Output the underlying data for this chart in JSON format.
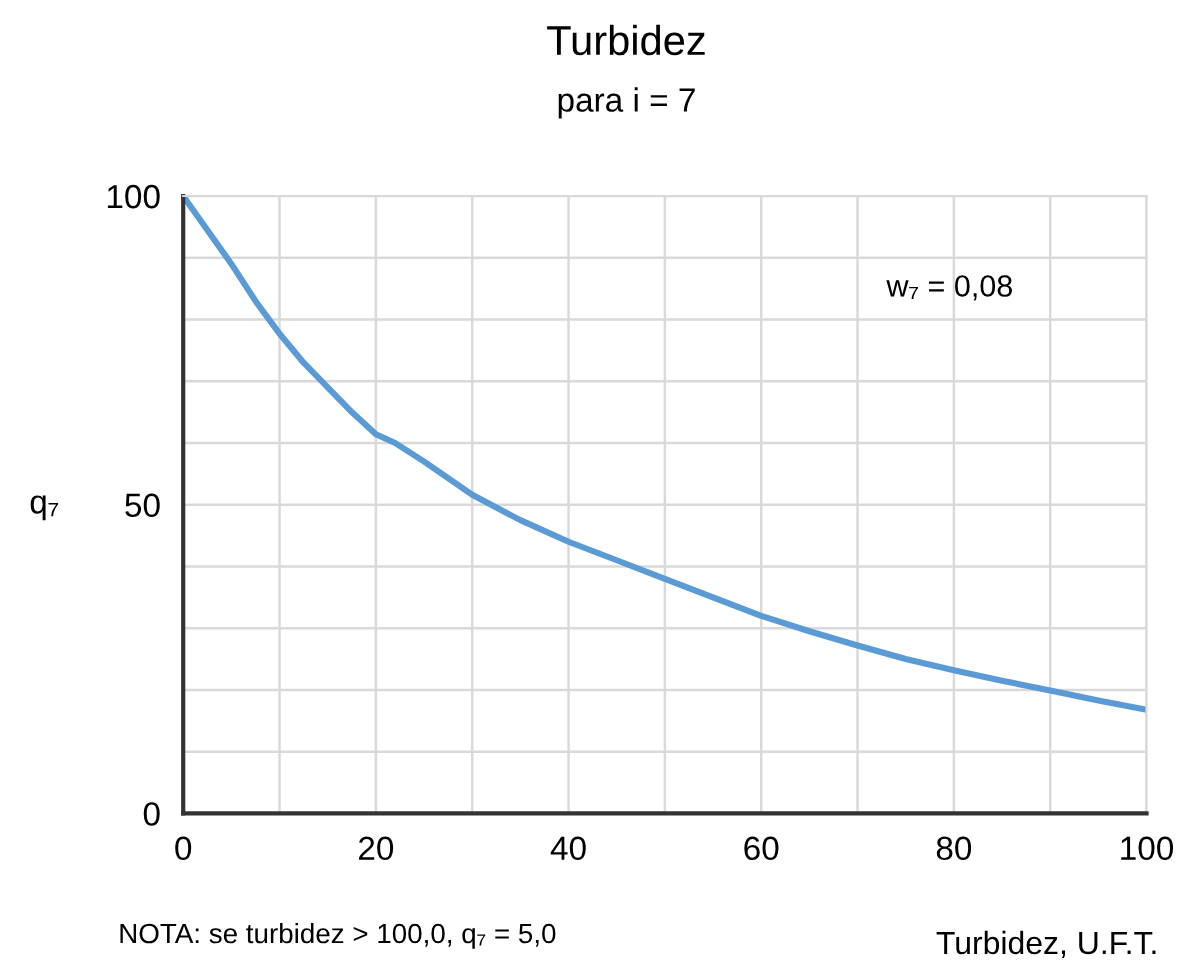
{
  "chart_data": {
    "type": "line",
    "title": "Turbidez",
    "subtitle": "para i = 7",
    "xlabel": "Turbidez, U.F.T.",
    "ylabel": "q₇",
    "x": [
      0,
      2.5,
      5,
      7.5,
      10,
      12.5,
      15,
      17.5,
      20,
      22,
      25,
      30,
      35,
      40,
      45,
      50,
      55,
      60,
      65,
      70,
      75,
      80,
      85,
      90,
      95,
      100
    ],
    "series": [
      {
        "color": "#5b9bd5",
        "values": [
          100,
          94.5,
          89,
          83,
          77.7,
          73,
          69,
          65,
          61.4,
          60,
          57,
          51.6,
          47.5,
          44,
          41,
          38,
          35,
          32,
          29.5,
          27.2,
          25,
          23.2,
          21.5,
          19.9,
          18.3,
          16.8
        ]
      }
    ],
    "xlim": [
      0,
      100
    ],
    "ylim": [
      0,
      100
    ],
    "xticks": [
      0,
      {
        "value": 10,
        "label": null
      },
      20,
      {
        "value": 30,
        "label": null
      },
      40,
      {
        "value": 50,
        "label": null
      },
      60,
      {
        "value": 70,
        "label": null
      },
      80,
      {
        "value": 90,
        "label": null
      },
      100
    ],
    "yticks": [
      0,
      {
        "value": 10,
        "label": null
      },
      {
        "value": 20,
        "label": null
      },
      {
        "value": 30,
        "label": null
      },
      {
        "value": 40,
        "label": null
      },
      50,
      {
        "value": 60,
        "label": null
      },
      {
        "value": 70,
        "label": null
      },
      {
        "value": 80,
        "label": null
      },
      {
        "value": 90,
        "label": null
      },
      100
    ],
    "grid": true,
    "marker": "none",
    "line_style": "solid",
    "annotations": [
      "w₇ = 0,08",
      "NOTA: se turbidez > 100,0, q₇ = 5,0"
    ]
  }
}
